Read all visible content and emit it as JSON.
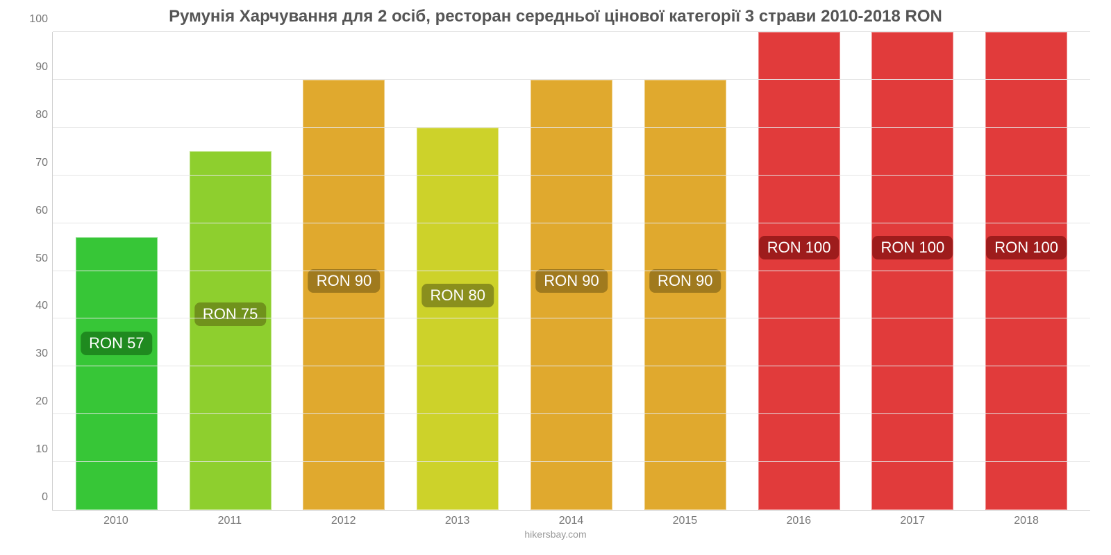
{
  "chart": {
    "type": "bar",
    "title": "Румунія Харчування для 2 осіб, ресторан середньої цінової категорії 3 страви 2010-2018 RON",
    "title_fontsize": 24,
    "title_color": "#555555",
    "source": "hikersbay.com",
    "background_color": "#ffffff",
    "grid_color": "#e5e5e5",
    "axis_color": "#d0d0d0",
    "tick_label_color": "#777777",
    "tick_fontsize": 16,
    "ylim": [
      0,
      100
    ],
    "ytick_step": 10,
    "bar_width_ratio": 0.72,
    "value_label_fontsize": 22,
    "value_label_prefix": "RON ",
    "categories": [
      "2010",
      "2011",
      "2012",
      "2013",
      "2014",
      "2015",
      "2016",
      "2017",
      "2018"
    ],
    "values": [
      57,
      75,
      90,
      80,
      90,
      90,
      100,
      100,
      100
    ],
    "bar_colors": [
      "#37c637",
      "#8ecf2e",
      "#e0a92e",
      "#cdd22a",
      "#e0a92e",
      "#e0a92e",
      "#e13b3b",
      "#e13b3b",
      "#e13b3b"
    ],
    "badge_colors": [
      "#1f8a1f",
      "#70921c",
      "#a07a1e",
      "#8a8f1d",
      "#a07a1e",
      "#a07a1e",
      "#9e1c1c",
      "#9e1c1c",
      "#9e1c1c"
    ],
    "badge_offsets_percent": [
      35,
      41,
      48,
      45,
      48,
      48,
      55,
      55,
      55
    ]
  }
}
